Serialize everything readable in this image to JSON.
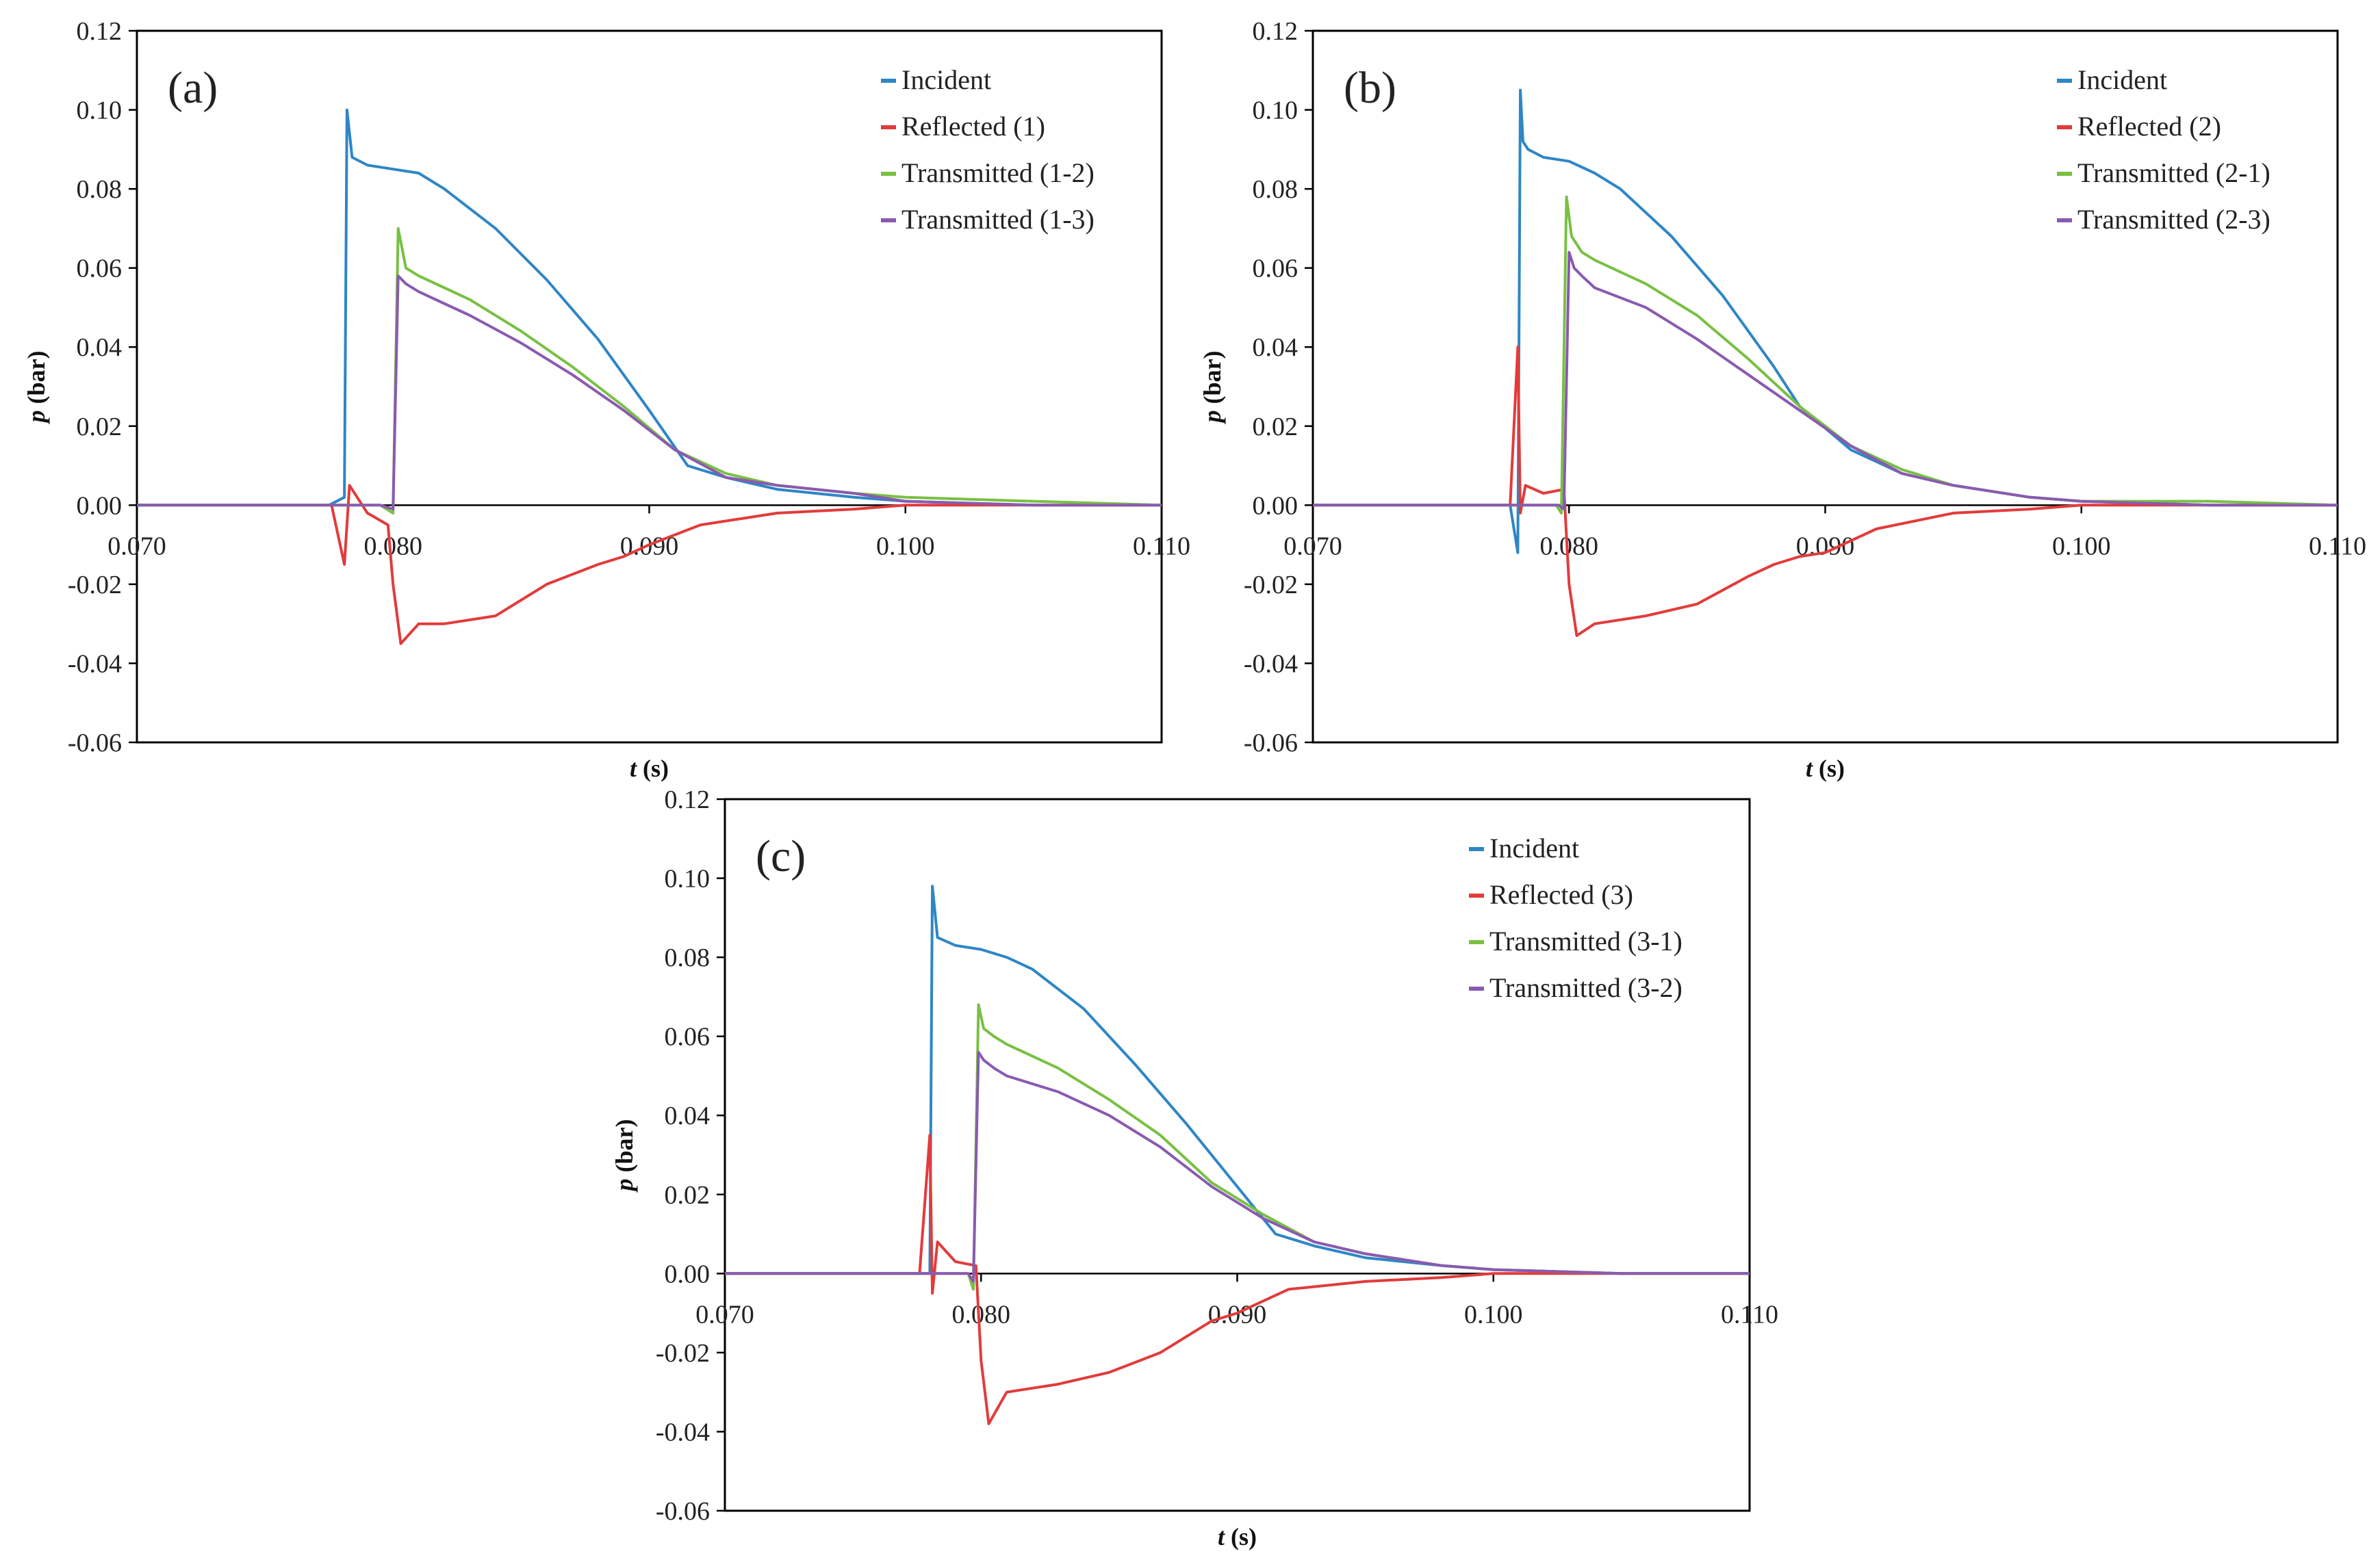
{
  "colors": {
    "incident": "#2e86c6",
    "reflected": "#e23b3b",
    "transmitted_a": "#79c043",
    "transmitted_b": "#8a5ab0"
  },
  "chart_data": [
    {
      "type": "line",
      "panel_label": "(a)",
      "xlabel": "t (s)",
      "ylabel": "p (bar)",
      "xlim": [
        0.07,
        0.11
      ],
      "ylim": [
        -0.06,
        0.12
      ],
      "x_ticks": [
        "0.070",
        "0.080",
        "0.090",
        "0.100",
        "0.110"
      ],
      "y_ticks": [
        "-0.06",
        "-0.04",
        "-0.02",
        "0.00",
        "0.02",
        "0.04",
        "0.06",
        "0.08",
        "0.10",
        "0.12"
      ],
      "grid": false,
      "legend_position": "top-right",
      "series": [
        {
          "name": "Incident",
          "color_key": "incident",
          "x": [
            0.07,
            0.0775,
            0.0781,
            0.0782,
            0.0784,
            0.079,
            0.08,
            0.081,
            0.082,
            0.084,
            0.086,
            0.088,
            0.09,
            0.0915,
            0.093,
            0.095,
            0.098,
            0.1,
            0.105,
            0.11
          ],
          "y": [
            0.0,
            0.0,
            0.002,
            0.1,
            0.088,
            0.086,
            0.085,
            0.084,
            0.08,
            0.07,
            0.057,
            0.042,
            0.024,
            0.01,
            0.007,
            0.004,
            0.002,
            0.001,
            0.0,
            0.0
          ]
        },
        {
          "name": "Reflected (1)",
          "color_key": "reflected",
          "x": [
            0.07,
            0.0776,
            0.0781,
            0.0783,
            0.079,
            0.0798,
            0.08,
            0.0803,
            0.081,
            0.082,
            0.084,
            0.086,
            0.088,
            0.089,
            0.09,
            0.092,
            0.095,
            0.098,
            0.1,
            0.105,
            0.11
          ],
          "y": [
            0.0,
            0.0,
            -0.015,
            0.005,
            -0.002,
            -0.005,
            -0.02,
            -0.035,
            -0.03,
            -0.03,
            -0.028,
            -0.02,
            -0.015,
            -0.013,
            -0.01,
            -0.005,
            -0.002,
            -0.001,
            0.0,
            0.0,
            0.0
          ]
        },
        {
          "name": "Transmitted (1-2)",
          "color_key": "transmitted_a",
          "x": [
            0.07,
            0.0795,
            0.08,
            0.0802,
            0.0805,
            0.081,
            0.083,
            0.085,
            0.087,
            0.089,
            0.091,
            0.093,
            0.095,
            0.098,
            0.1,
            0.105,
            0.11
          ],
          "y": [
            0.0,
            0.0,
            -0.002,
            0.07,
            0.06,
            0.058,
            0.052,
            0.044,
            0.035,
            0.025,
            0.014,
            0.008,
            0.005,
            0.003,
            0.002,
            0.001,
            0.0
          ]
        },
        {
          "name": "Transmitted (1-3)",
          "color_key": "transmitted_b",
          "x": [
            0.07,
            0.0795,
            0.08,
            0.0802,
            0.0805,
            0.081,
            0.083,
            0.085,
            0.087,
            0.089,
            0.091,
            0.093,
            0.095,
            0.098,
            0.1,
            0.105,
            0.11
          ],
          "y": [
            0.0,
            0.0,
            -0.001,
            0.058,
            0.056,
            0.054,
            0.048,
            0.041,
            0.033,
            0.024,
            0.014,
            0.007,
            0.005,
            0.003,
            0.001,
            0.0,
            0.0
          ]
        }
      ]
    },
    {
      "type": "line",
      "panel_label": "(b)",
      "xlabel": "t (s)",
      "ylabel": "p (bar)",
      "xlim": [
        0.07,
        0.11
      ],
      "ylim": [
        -0.06,
        0.12
      ],
      "x_ticks": [
        "0.070",
        "0.080",
        "0.090",
        "0.100",
        "0.110"
      ],
      "y_ticks": [
        "-0.06",
        "-0.04",
        "-0.02",
        "0.00",
        "0.02",
        "0.04",
        "0.06",
        "0.08",
        "0.10",
        "0.12"
      ],
      "grid": false,
      "legend_position": "top-right",
      "series": [
        {
          "name": "Incident",
          "color_key": "incident",
          "x": [
            0.07,
            0.0777,
            0.078,
            0.0781,
            0.0782,
            0.0784,
            0.079,
            0.08,
            0.081,
            0.082,
            0.084,
            0.086,
            0.088,
            0.089,
            0.091,
            0.093,
            0.095,
            0.098,
            0.1,
            0.105,
            0.11
          ],
          "y": [
            0.0,
            0.0,
            -0.012,
            0.105,
            0.092,
            0.09,
            0.088,
            0.087,
            0.084,
            0.08,
            0.068,
            0.053,
            0.035,
            0.025,
            0.014,
            0.008,
            0.005,
            0.002,
            0.001,
            0.0,
            0.0
          ]
        },
        {
          "name": "Reflected (2)",
          "color_key": "reflected",
          "x": [
            0.07,
            0.0777,
            0.078,
            0.0781,
            0.0783,
            0.079,
            0.0798,
            0.08,
            0.0803,
            0.081,
            0.083,
            0.085,
            0.087,
            0.088,
            0.089,
            0.09,
            0.092,
            0.095,
            0.098,
            0.1,
            0.105,
            0.11
          ],
          "y": [
            0.0,
            0.0,
            0.04,
            -0.002,
            0.005,
            0.003,
            0.004,
            -0.02,
            -0.033,
            -0.03,
            -0.028,
            -0.025,
            -0.018,
            -0.015,
            -0.013,
            -0.012,
            -0.006,
            -0.002,
            -0.001,
            0.0,
            0.0,
            0.0
          ]
        },
        {
          "name": "Transmitted (2-1)",
          "color_key": "transmitted_a",
          "x": [
            0.07,
            0.0795,
            0.0797,
            0.0799,
            0.0801,
            0.0805,
            0.081,
            0.083,
            0.085,
            0.087,
            0.089,
            0.091,
            0.093,
            0.095,
            0.098,
            0.1,
            0.105,
            0.11
          ],
          "y": [
            0.0,
            0.0,
            -0.002,
            0.078,
            0.068,
            0.064,
            0.062,
            0.056,
            0.048,
            0.037,
            0.025,
            0.015,
            0.009,
            0.005,
            0.002,
            0.001,
            0.001,
            0.0
          ]
        },
        {
          "name": "Transmitted (2-3)",
          "color_key": "transmitted_b",
          "x": [
            0.07,
            0.0796,
            0.0798,
            0.08,
            0.0802,
            0.0805,
            0.081,
            0.083,
            0.085,
            0.087,
            0.089,
            0.091,
            0.093,
            0.095,
            0.098,
            0.1,
            0.105,
            0.11
          ],
          "y": [
            0.0,
            0.0,
            -0.001,
            0.064,
            0.06,
            0.058,
            0.055,
            0.05,
            0.042,
            0.033,
            0.024,
            0.015,
            0.008,
            0.005,
            0.002,
            0.001,
            0.0,
            0.0
          ]
        }
      ]
    },
    {
      "type": "line",
      "panel_label": "(c)",
      "xlabel": "t (s)",
      "ylabel": "p (bar)",
      "xlim": [
        0.07,
        0.11
      ],
      "ylim": [
        -0.06,
        0.12
      ],
      "x_ticks": [
        "0.070",
        "0.080",
        "0.090",
        "0.100",
        "0.110"
      ],
      "y_ticks": [
        "-0.06",
        "-0.04",
        "-0.02",
        "0.00",
        "0.02",
        "0.04",
        "0.06",
        "0.08",
        "0.10",
        "0.12"
      ],
      "grid": false,
      "legend_position": "top-right",
      "series": [
        {
          "name": "Incident",
          "color_key": "incident",
          "x": [
            0.07,
            0.0777,
            0.078,
            0.0781,
            0.0783,
            0.079,
            0.08,
            0.081,
            0.082,
            0.084,
            0.086,
            0.088,
            0.09,
            0.0915,
            0.093,
            0.095,
            0.098,
            0.1,
            0.105,
            0.11
          ],
          "y": [
            0.0,
            0.0,
            0.0,
            0.098,
            0.085,
            0.083,
            0.082,
            0.08,
            0.077,
            0.067,
            0.053,
            0.038,
            0.022,
            0.01,
            0.007,
            0.004,
            0.002,
            0.001,
            0.0,
            0.0
          ]
        },
        {
          "name": "Reflected (3)",
          "color_key": "reflected",
          "x": [
            0.07,
            0.0776,
            0.078,
            0.0781,
            0.0783,
            0.079,
            0.0798,
            0.08,
            0.0803,
            0.081,
            0.083,
            0.085,
            0.087,
            0.088,
            0.089,
            0.09,
            0.092,
            0.095,
            0.098,
            0.1,
            0.105,
            0.11
          ],
          "y": [
            0.0,
            0.0,
            0.035,
            -0.005,
            0.008,
            0.003,
            0.002,
            -0.022,
            -0.038,
            -0.03,
            -0.028,
            -0.025,
            -0.02,
            -0.016,
            -0.012,
            -0.01,
            -0.004,
            -0.002,
            -0.001,
            0.0,
            0.0,
            0.0
          ]
        },
        {
          "name": "Transmitted (3-1)",
          "color_key": "transmitted_a",
          "x": [
            0.07,
            0.0795,
            0.0797,
            0.0799,
            0.0801,
            0.0805,
            0.081,
            0.083,
            0.085,
            0.087,
            0.089,
            0.091,
            0.093,
            0.095,
            0.098,
            0.1,
            0.105,
            0.11
          ],
          "y": [
            0.0,
            0.0,
            -0.004,
            0.068,
            0.062,
            0.06,
            0.058,
            0.052,
            0.044,
            0.035,
            0.023,
            0.015,
            0.008,
            0.005,
            0.002,
            0.001,
            0.0,
            0.0
          ]
        },
        {
          "name": "Transmitted (3-2)",
          "color_key": "transmitted_b",
          "x": [
            0.07,
            0.0795,
            0.0797,
            0.0799,
            0.0801,
            0.0805,
            0.081,
            0.083,
            0.085,
            0.087,
            0.089,
            0.091,
            0.093,
            0.095,
            0.098,
            0.1,
            0.105,
            0.11
          ],
          "y": [
            0.0,
            0.0,
            -0.002,
            0.056,
            0.054,
            0.052,
            0.05,
            0.046,
            0.04,
            0.032,
            0.022,
            0.014,
            0.008,
            0.005,
            0.002,
            0.001,
            0.0,
            0.0
          ]
        }
      ]
    }
  ]
}
